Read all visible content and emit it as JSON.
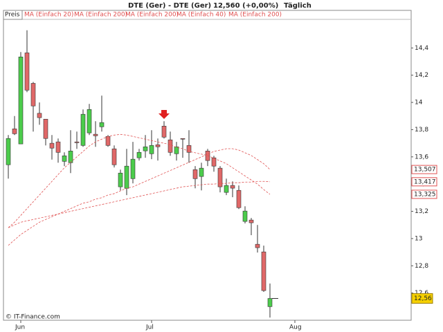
{
  "chart_data": {
    "type": "candlestick",
    "title": "DTE (Ger) - DTE (Ger)",
    "last_price": "12,560 (+0,00%)",
    "period": "Täglich",
    "source": "© IT-Finance.com",
    "legend": [
      "Preis",
      "MA (Einfach 20)",
      "MA (Einfach 200)",
      "MA (Einfach 200)",
      "MA (Einfach 40)",
      "MA (Einfach 200)"
    ],
    "categories": [
      null,
      null,
      "Jun",
      null,
      null,
      null,
      null,
      null,
      null,
      null,
      null,
      null,
      null,
      null,
      null,
      null,
      null,
      null,
      null,
      null,
      null,
      null,
      null,
      "Jul",
      null,
      null,
      null,
      null,
      null,
      null,
      null,
      null,
      null,
      null,
      null,
      null,
      null,
      null,
      null,
      null,
      null,
      null,
      null,
      null,
      null,
      null,
      "Aug"
    ],
    "open": [
      13.542,
      13.806,
      13.695,
      14.364,
      14.14,
      13.92,
      13.877,
      13.7,
      13.71,
      13.567,
      13.557,
      13.71,
      13.684,
      13.776,
      13.766,
      13.821,
      13.75,
      13.659,
      13.38,
      13.369,
      13.44,
      13.593,
      13.644,
      13.623,
      13.689,
      13.826,
      13.725,
      13.623,
      13.735,
      13.684,
      13.506,
      13.456,
      13.643,
      13.593,
      13.517,
      13.339,
      13.39,
      13.354,
      13.126,
      13.136,
      12.958,
      12.902,
      12.5,
      null,
      null,
      null,
      null
    ],
    "high": [
      13.76,
      13.9,
      14.37,
      14.53,
      14.15,
      14.0,
      13.877,
      13.76,
      13.735,
      13.633,
      13.796,
      13.786,
      13.948,
      13.989,
      13.862,
      14.05,
      13.76,
      13.684,
      13.506,
      13.659,
      13.71,
      13.659,
      13.76,
      13.796,
      13.735,
      13.862,
      13.786,
      13.71,
      13.735,
      13.796,
      13.532,
      13.557,
      13.659,
      13.608,
      13.532,
      13.44,
      13.42,
      13.39,
      13.237,
      13.151,
      13.1,
      12.948,
      12.67,
      null,
      null,
      null,
      null
    ],
    "low": [
      13.44,
      13.76,
      13.695,
      14.075,
      13.786,
      13.836,
      13.684,
      13.58,
      13.557,
      13.532,
      13.481,
      13.659,
      13.674,
      13.76,
      13.674,
      13.786,
      13.674,
      13.522,
      13.354,
      13.319,
      13.405,
      13.573,
      13.593,
      13.583,
      13.573,
      13.735,
      13.608,
      13.573,
      13.593,
      13.557,
      13.369,
      13.354,
      13.532,
      13.491,
      13.339,
      13.319,
      13.304,
      13.217,
      13.111,
      13.025,
      12.897,
      12.608,
      12.42,
      null,
      null,
      null,
      null
    ],
    "close": [
      13.735,
      13.77,
      14.334,
      14.09,
      13.974,
      13.888,
      13.735,
      13.664,
      13.633,
      13.608,
      13.643,
      13.704,
      13.913,
      13.948,
      13.755,
      13.852,
      13.684,
      13.542,
      13.481,
      13.532,
      13.583,
      13.633,
      13.674,
      13.684,
      13.674,
      13.745,
      13.633,
      13.674,
      13.73,
      13.633,
      13.44,
      13.517,
      13.573,
      13.532,
      13.38,
      13.39,
      13.37,
      13.227,
      13.202,
      13.116,
      12.933,
      12.618,
      12.56,
      null,
      null,
      null,
      null
    ],
    "close_value_labels": [
      null,
      null,
      null,
      null,
      null,
      null,
      null,
      null,
      null,
      null,
      null,
      null,
      null,
      null,
      null,
      null,
      null,
      null,
      null,
      null,
      null,
      null,
      null,
      null,
      null,
      null,
      null,
      null,
      null,
      null,
      null,
      null,
      null,
      null,
      null,
      null,
      null,
      null,
      null,
      null,
      null,
      null,
      "12,56",
      null,
      null,
      null,
      null
    ],
    "up_color": "#4ccc4c",
    "down_color": "#e06868",
    "series": [
      {
        "color": "#e05050",
        "values": [
          13.08,
          13.12,
          13.17,
          13.22,
          13.27,
          13.32,
          13.37,
          13.42,
          13.47,
          13.52,
          13.56,
          13.6,
          13.64,
          13.68,
          13.71,
          13.73,
          13.75,
          13.76,
          13.765,
          13.76,
          13.75,
          13.74,
          13.73,
          13.72,
          13.71,
          13.7,
          13.69,
          13.67,
          13.66,
          13.64,
          13.63,
          13.62,
          13.61,
          13.59,
          13.57,
          13.55,
          13.52,
          13.49,
          13.46,
          13.43,
          13.4,
          13.36,
          13.325,
          null,
          null,
          null,
          null
        ],
        "value_labels": [
          null,
          null,
          null,
          null,
          null,
          null,
          null,
          null,
          null,
          null,
          null,
          null,
          null,
          null,
          null,
          null,
          null,
          null,
          null,
          null,
          null,
          null,
          null,
          null,
          null,
          null,
          null,
          null,
          null,
          null,
          null,
          null,
          null,
          null,
          null,
          null,
          null,
          null,
          null,
          null,
          null,
          null,
          "13,325",
          null,
          null,
          null,
          null
        ]
      },
      {
        "color": "#e05050",
        "values": [
          12.95,
          12.99,
          13.03,
          13.06,
          13.09,
          13.12,
          13.14,
          13.16,
          13.18,
          13.2,
          13.22,
          13.24,
          13.26,
          13.27,
          13.29,
          13.3,
          13.32,
          13.33,
          13.35,
          13.37,
          13.38,
          13.4,
          13.42,
          13.44,
          13.46,
          13.48,
          13.5,
          13.52,
          13.54,
          13.56,
          13.58,
          13.6,
          13.62,
          13.64,
          13.65,
          13.66,
          13.66,
          13.65,
          13.63,
          13.61,
          13.58,
          13.55,
          13.507,
          null,
          null,
          null,
          null
        ],
        "value_labels": [
          null,
          null,
          null,
          null,
          null,
          null,
          null,
          null,
          null,
          null,
          null,
          null,
          null,
          null,
          null,
          null,
          null,
          null,
          null,
          null,
          null,
          null,
          null,
          null,
          null,
          null,
          null,
          null,
          null,
          null,
          null,
          null,
          null,
          null,
          null,
          null,
          null,
          null,
          null,
          null,
          null,
          null,
          "13,507",
          null,
          null,
          null,
          null
        ]
      },
      {
        "color": "#e05050",
        "values": [
          13.08,
          13.1,
          13.12,
          13.13,
          13.14,
          13.15,
          13.16,
          13.17,
          13.18,
          13.19,
          13.2,
          13.21,
          13.22,
          13.23,
          13.24,
          13.25,
          13.26,
          13.27,
          13.28,
          13.29,
          13.3,
          13.31,
          13.32,
          13.33,
          13.34,
          13.35,
          13.36,
          13.37,
          13.38,
          13.385,
          13.39,
          13.395,
          13.4,
          13.4,
          13.405,
          13.405,
          13.41,
          13.41,
          13.415,
          13.415,
          13.42,
          13.42,
          13.417,
          null,
          null,
          null,
          null
        ],
        "value_labels": [
          null,
          null,
          null,
          null,
          null,
          null,
          null,
          null,
          null,
          null,
          null,
          null,
          null,
          null,
          null,
          null,
          null,
          null,
          null,
          null,
          null,
          null,
          null,
          null,
          null,
          null,
          null,
          null,
          null,
          null,
          null,
          null,
          null,
          null,
          null,
          null,
          null,
          null,
          null,
          null,
          null,
          null,
          "13,417",
          null,
          null,
          null,
          null
        ]
      }
    ],
    "ylim": [
      12.4,
      14.61
    ],
    "yticks": [
      {
        "value": 12.6,
        "label": "12,6"
      },
      {
        "value": 12.8,
        "label": "12,8"
      },
      13,
      {
        "value": 13.2,
        "label": "13,2"
      },
      {
        "value": 13.4,
        "label": "13,4"
      },
      {
        "value": 13.6,
        "label": "13,6"
      },
      {
        "value": 13.8,
        "label": "13,8"
      },
      14,
      {
        "value": 14.2,
        "label": "14,2"
      },
      {
        "value": 14.4,
        "label": "14,4"
      }
    ]
  }
}
